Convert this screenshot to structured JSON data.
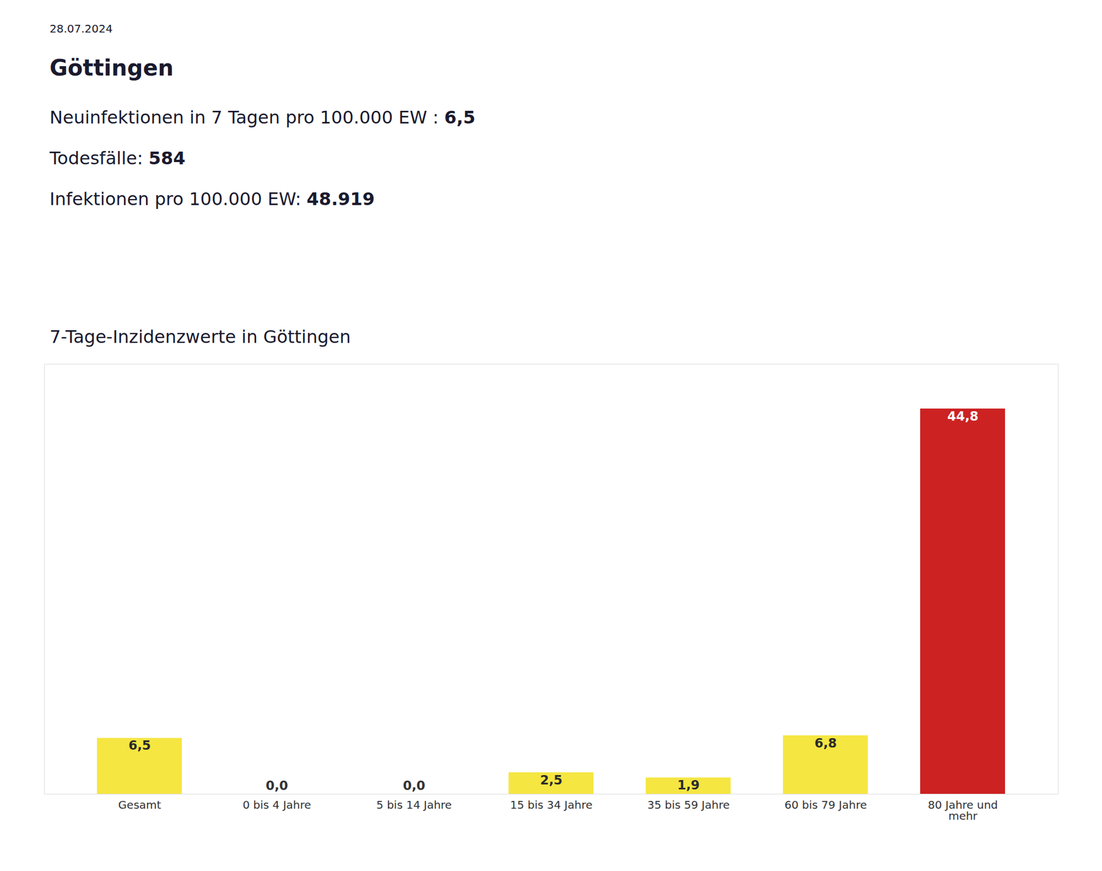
{
  "chart_data": {
    "type": "bar",
    "title": "7-Tage-Inzidenzwerte in Göttingen",
    "annotations": [
      "28.07.2024",
      "Göttingen",
      [
        "Neuinfektionen in 7 Tagen pro 100.000 EW : ",
        "6,5"
      ],
      [
        "Todesfälle: ",
        "584"
      ],
      [
        "Infektionen pro 100.000 EW: ",
        "48.919"
      ]
    ],
    "categories": [
      "Gesamt",
      "0 bis 4 Jahre",
      "5 bis 14 Jahre",
      "15 bis 34 Jahre",
      "35 bis 59 Jahre",
      "60 bis 79 Jahre",
      "80 Jahre und\nmehr"
    ],
    "values": [
      6.5,
      0.0,
      0.0,
      2.5,
      1.9,
      6.8,
      44.8
    ],
    "value_labels": [
      "6,5",
      "0,0",
      "0,0",
      "2,5",
      "1,9",
      "6,8",
      "44,8"
    ],
    "colors": [
      "#f5e642",
      "#f5e642",
      "#f5e642",
      "#f5e642",
      "#f5e642",
      "#f5e642",
      "#cc2222"
    ],
    "data_labels": true,
    "ylim": [
      0,
      50
    ],
    "tick_labels": "x",
    "grid": false
  }
}
